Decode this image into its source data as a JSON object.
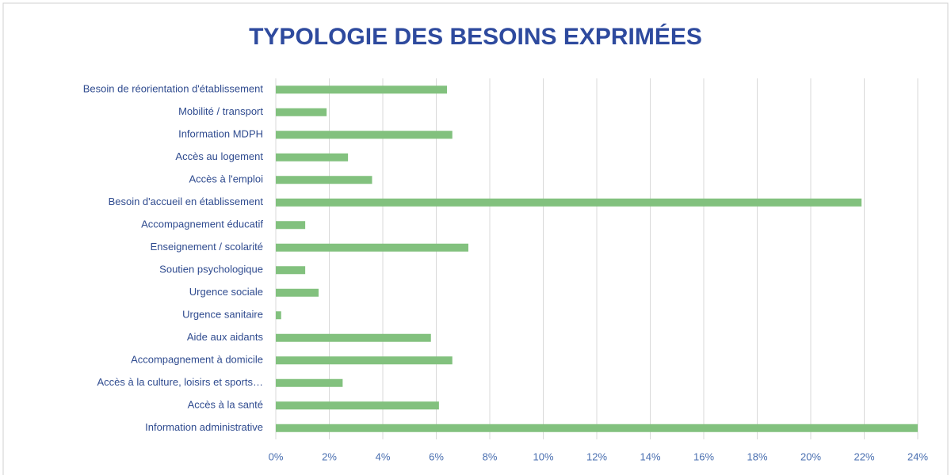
{
  "chart_data": {
    "type": "barh",
    "title": "TYPOLOGIE DES BESOINS EXPRIMÉES",
    "categories": [
      "Besoin de réorientation d'établissement",
      "Mobilité / transport",
      "Information MDPH",
      "Accès au logement",
      "Accès à l'emploi",
      "Besoin d'accueil en établissement",
      "Accompagnement éducatif",
      "Enseignement / scolarité",
      "Soutien psychologique",
      "Urgence sociale",
      "Urgence sanitaire",
      "Aide aux aidants",
      "Accompagnement à domicile",
      "Accès à la culture, loisirs et sports…",
      "Accès à la santé",
      "Information administrative"
    ],
    "values": [
      6.4,
      1.9,
      6.6,
      2.7,
      3.6,
      21.9,
      1.1,
      7.2,
      1.1,
      1.6,
      0.2,
      5.8,
      6.6,
      2.5,
      6.1,
      24
    ],
    "color": "#82c17e",
    "xlim": [
      0,
      24
    ],
    "xticks": [
      {
        "value": 0,
        "label": "0%"
      },
      {
        "value": 2,
        "label": "2%"
      },
      {
        "value": 4,
        "label": "4%"
      },
      {
        "value": 6,
        "label": "6%"
      },
      {
        "value": 8,
        "label": "8%"
      },
      {
        "value": 10,
        "label": "10%"
      },
      {
        "value": 12,
        "label": "12%"
      },
      {
        "value": 14,
        "label": "14%"
      },
      {
        "value": 16,
        "label": "16%"
      },
      {
        "value": 18,
        "label": "18%"
      },
      {
        "value": 20,
        "label": "20%"
      },
      {
        "value": 22,
        "label": "22%"
      },
      {
        "value": 24,
        "label": "24%"
      }
    ],
    "grid": true
  }
}
